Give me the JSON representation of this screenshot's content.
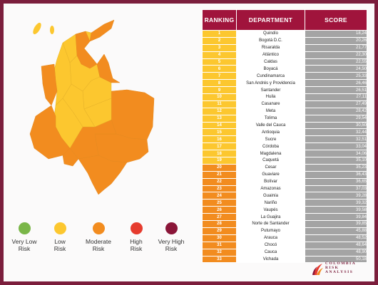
{
  "table": {
    "headers": [
      "RANKING",
      "DEPARTMENT",
      "SCORE"
    ],
    "rows": [
      {
        "rank": "1",
        "department": "Quindío",
        "score": "18,24",
        "risk": "low"
      },
      {
        "rank": "2",
        "department": "Bogotá D.C.",
        "score": "20,26",
        "risk": "low"
      },
      {
        "rank": "3",
        "department": "Risaralda",
        "score": "21,77",
        "risk": "low"
      },
      {
        "rank": "4",
        "department": "Atlántico",
        "score": "22,30",
        "risk": "low"
      },
      {
        "rank": "5",
        "department": "Caldas",
        "score": "22,55",
        "risk": "low"
      },
      {
        "rank": "6",
        "department": "Boyacá",
        "score": "24,50",
        "risk": "low"
      },
      {
        "rank": "7",
        "department": "Cundinamarca",
        "score": "25,33",
        "risk": "low"
      },
      {
        "rank": "8",
        "department": "San Andrés y Providencia",
        "score": "26,46",
        "risk": "low"
      },
      {
        "rank": "9",
        "department": "Santander",
        "score": "26,51",
        "risk": "low"
      },
      {
        "rank": "10",
        "department": "Huila",
        "score": "27,11",
        "risk": "low"
      },
      {
        "rank": "11",
        "department": "Casanare",
        "score": "27,49",
        "risk": "low"
      },
      {
        "rank": "12",
        "department": "Meta",
        "score": "28,42",
        "risk": "low"
      },
      {
        "rank": "13",
        "department": "Tolima",
        "score": "29,54",
        "risk": "low"
      },
      {
        "rank": "14",
        "department": "Valle del Cauca",
        "score": "30,50",
        "risk": "low"
      },
      {
        "rank": "15",
        "department": "Antioquia",
        "score": "32,44",
        "risk": "low"
      },
      {
        "rank": "16",
        "department": "Sucre",
        "score": "32,51",
        "risk": "low"
      },
      {
        "rank": "17",
        "department": "Córdoba",
        "score": "33,04",
        "risk": "low"
      },
      {
        "rank": "18",
        "department": "Magdalena",
        "score": "34,06",
        "risk": "low"
      },
      {
        "rank": "19",
        "department": "Caquetá",
        "score": "35,10",
        "risk": "low"
      },
      {
        "rank": "20",
        "department": "Cesar",
        "score": "35,23",
        "risk": "moderate"
      },
      {
        "rank": "21",
        "department": "Guaviare",
        "score": "36,43",
        "risk": "moderate"
      },
      {
        "rank": "22",
        "department": "Bolívar",
        "score": "36,65",
        "risk": "moderate"
      },
      {
        "rank": "23",
        "department": "Amazonas",
        "score": "37,03",
        "risk": "moderate"
      },
      {
        "rank": "24",
        "department": "Guainía",
        "score": "39,28",
        "risk": "moderate"
      },
      {
        "rank": "25",
        "department": "Nariño",
        "score": "39,32",
        "risk": "moderate"
      },
      {
        "rank": "26",
        "department": "Vaupés",
        "score": "39,58",
        "risk": "moderate"
      },
      {
        "rank": "27",
        "department": "La Guajira",
        "score": "39,84",
        "risk": "moderate"
      },
      {
        "rank": "28",
        "department": "Norte de Santander",
        "score": "39,85",
        "risk": "moderate"
      },
      {
        "rank": "29",
        "department": "Putumayo",
        "score": "45,88",
        "risk": "moderate"
      },
      {
        "rank": "30",
        "department": "Arauca",
        "score": "48,52",
        "risk": "moderate"
      },
      {
        "rank": "31",
        "department": "Chocó",
        "score": "48,64",
        "risk": "moderate"
      },
      {
        "rank": "32",
        "department": "Cauca",
        "score": "48,90",
        "risk": "moderate"
      },
      {
        "rank": "33",
        "department": "Vichada",
        "score": "50,18",
        "risk": "moderate"
      }
    ]
  },
  "legend": [
    {
      "line1": "Very Low",
      "line2": "Risk",
      "color": "#7ab648"
    },
    {
      "line1": "Low",
      "line2": "Risk",
      "color": "#fcc72f"
    },
    {
      "line1": "Moderate",
      "line2": "Risk",
      "color": "#f28c1f"
    },
    {
      "line1": "High",
      "line2": "Risk",
      "color": "#e63b2e"
    },
    {
      "line1": "Very High",
      "line2": "Risk",
      "color": "#8a1538"
    }
  ],
  "colors": {
    "low": "#fcc72f",
    "moderate": "#f28c1f",
    "header": "#a0143c",
    "score_bg": "#a4a4a4",
    "frame": "#7b1e3c"
  },
  "brand": {
    "line1": "COLOMBIA",
    "line2": "RISK",
    "line3": "ANALYSIS"
  }
}
